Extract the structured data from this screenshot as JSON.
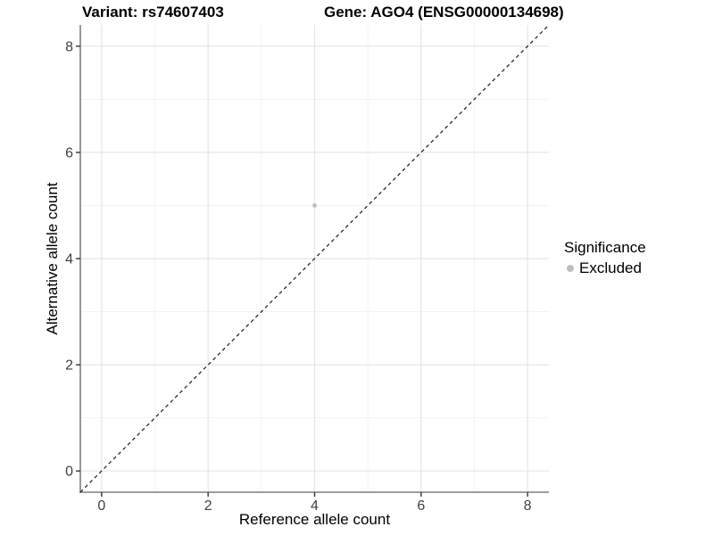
{
  "chart_data": {
    "type": "scatter",
    "titles": {
      "left": "Variant: rs74607403",
      "right": "Gene: AGO4 (ENSG00000134698)"
    },
    "xlabel": "Reference allele count",
    "ylabel": "Alternative allele count",
    "xlim": [
      -0.4,
      8.4
    ],
    "ylim": [
      -0.4,
      8.4
    ],
    "x_ticks": [
      0,
      2,
      4,
      6,
      8
    ],
    "y_ticks": [
      0,
      2,
      4,
      6,
      8
    ],
    "x_minor_ticks": [
      1,
      3,
      5,
      7
    ],
    "y_minor_ticks": [
      1,
      3,
      5,
      7
    ],
    "grid": "major and minor gridlines, white background",
    "points": [
      {
        "x": 4,
        "y": 5,
        "series": "Excluded",
        "color": "#bebebe"
      }
    ],
    "reference_line": {
      "kind": "identity y=x",
      "style": "dashed",
      "color": "#1a1a1a"
    },
    "legend": {
      "title": "Significance",
      "position": "right-middle",
      "items": [
        {
          "label": "Excluded",
          "marker": "circle",
          "color": "#bebebe"
        }
      ]
    },
    "colors": {
      "major_grid": "#e5e5e5",
      "minor_grid": "#f0f0f0",
      "axis_line": "#7f7f7f",
      "tick_mark": "#333333",
      "tick_label": "#404040",
      "point": "#bebebe"
    }
  }
}
